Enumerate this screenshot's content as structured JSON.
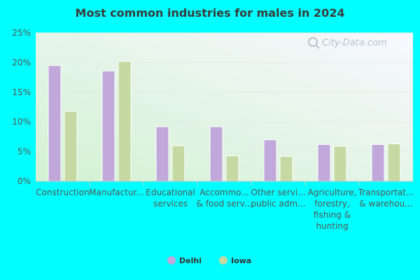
{
  "chart_data": {
    "type": "bar",
    "title": "Most common industries for males in 2024",
    "categories": [
      [
        "Construction"
      ],
      [
        "Manufactur..."
      ],
      [
        "Educational",
        "services"
      ],
      [
        "Accommo...",
        "& food serv..."
      ],
      [
        "Other servi...",
        "public adm..."
      ],
      [
        "Agriculture,",
        "forestry,",
        "fishing &",
        "hunting"
      ],
      [
        "Transportat...",
        "& warehou..."
      ]
    ],
    "series": [
      {
        "name": "Delhi",
        "color": "#c0a9da",
        "values": [
          19.5,
          18.6,
          9.2,
          9.2,
          7.0,
          6.2,
          6.2
        ]
      },
      {
        "name": "Iowa",
        "color": "#c5d9a3",
        "values": [
          11.8,
          20.2,
          6.0,
          4.3,
          4.2,
          5.9,
          6.3
        ]
      }
    ],
    "ylim": [
      0,
      25
    ],
    "yticks": [
      0,
      5,
      10,
      15,
      20,
      25
    ],
    "ytick_suffix": "%",
    "legend_position": "bottom",
    "watermark": "City-Data.com"
  }
}
